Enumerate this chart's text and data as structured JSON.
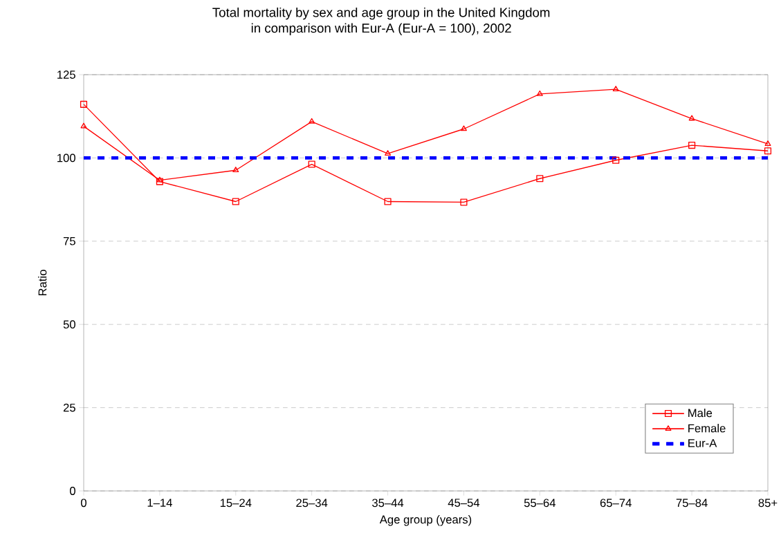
{
  "chart_data": {
    "type": "line",
    "title": "Total mortality by sex and age group in the United Kingdom\nin comparison with Eur-A (Eur-A = 100), 2002",
    "xlabel": "Age group (years)",
    "ylabel": "Ratio",
    "categories": [
      "0",
      "1–14",
      "15–24",
      "25–34",
      "35–44",
      "45–54",
      "55–64",
      "65–74",
      "75–84",
      "85+"
    ],
    "series": [
      {
        "name": "Male",
        "color": "#ff0000",
        "marker": "square",
        "line_style": "solid",
        "values": [
          116.1,
          92.9,
          86.9,
          98.1,
          86.9,
          86.7,
          93.8,
          99.3,
          103.8,
          102.1
        ]
      },
      {
        "name": "Female",
        "color": "#ff0000",
        "marker": "triangle",
        "line_style": "solid",
        "values": [
          109.5,
          93.3,
          96.3,
          110.9,
          101.3,
          108.7,
          119.2,
          120.6,
          111.8,
          104.2
        ]
      },
      {
        "name": "Eur-A",
        "color": "#0000ff",
        "marker": "none",
        "line_style": "dashed",
        "values": [
          100,
          100,
          100,
          100,
          100,
          100,
          100,
          100,
          100,
          100
        ]
      }
    ],
    "ylim": [
      0,
      125
    ],
    "yticks": [
      0,
      25,
      50,
      75,
      100,
      125
    ],
    "grid": "y",
    "legend": "bottom right"
  }
}
